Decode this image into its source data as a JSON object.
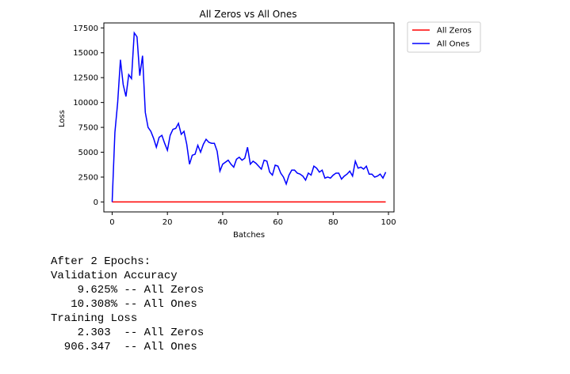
{
  "chart_data": {
    "type": "line",
    "title": "All Zeros vs All Ones",
    "xlabel": "Batches",
    "ylabel": "Loss",
    "xlim": [
      -3,
      102
    ],
    "ylim": [
      -1000,
      18000
    ],
    "xticks": [
      0,
      20,
      40,
      60,
      80,
      100
    ],
    "yticks": [
      0,
      2500,
      5000,
      7500,
      10000,
      12500,
      15000,
      17500
    ],
    "grid": false,
    "legend_placement": "outside-top-right",
    "series": [
      {
        "name": "All Zeros",
        "color": "#ff0000",
        "x": [
          0,
          99
        ],
        "y": [
          0,
          0
        ]
      },
      {
        "name": "All Ones",
        "color": "#0000ff",
        "x": [
          0,
          1,
          2,
          3,
          4,
          5,
          6,
          7,
          8,
          9,
          10,
          11,
          12,
          13,
          14,
          15,
          16,
          17,
          18,
          19,
          20,
          21,
          22,
          23,
          24,
          25,
          26,
          27,
          28,
          29,
          30,
          31,
          32,
          33,
          34,
          35,
          36,
          37,
          38,
          39,
          40,
          41,
          42,
          43,
          44,
          45,
          46,
          47,
          48,
          49,
          50,
          51,
          52,
          53,
          54,
          55,
          56,
          57,
          58,
          59,
          60,
          61,
          62,
          63,
          64,
          65,
          66,
          67,
          68,
          69,
          70,
          71,
          72,
          73,
          74,
          75,
          76,
          77,
          78,
          79,
          80,
          81,
          82,
          83,
          84,
          85,
          86,
          87,
          88,
          89,
          90,
          91,
          92,
          93,
          94,
          95,
          96,
          97,
          98,
          99
        ],
        "y": [
          0,
          7000,
          10000,
          14300,
          11800,
          10600,
          12800,
          12400,
          17000,
          16600,
          12700,
          14700,
          9000,
          7500,
          7100,
          6400,
          5500,
          6500,
          6700,
          5900,
          5200,
          6700,
          7300,
          7400,
          7900,
          6800,
          7100,
          5800,
          3800,
          4700,
          4800,
          5700,
          5000,
          5800,
          6300,
          6000,
          5900,
          5900,
          5100,
          3100,
          3800,
          4000,
          4200,
          3800,
          3500,
          4300,
          4500,
          4200,
          4400,
          5500,
          3800,
          4100,
          3900,
          3600,
          3300,
          4200,
          4100,
          3000,
          2700,
          3700,
          3600,
          2900,
          2500,
          1800,
          2700,
          3200,
          3200,
          2900,
          2800,
          2600,
          2200,
          2900,
          2700,
          3600,
          3400,
          3000,
          3200,
          2400,
          2500,
          2400,
          2700,
          2900,
          2900,
          2300,
          2600,
          2800,
          3100,
          2600,
          4100,
          3400,
          3500,
          3300,
          3600,
          2800,
          2800,
          2500,
          2600,
          2800,
          2400,
          3000
        ]
      }
    ]
  },
  "output_lines": [
    "After 2 Epochs:",
    "Validation Accuracy",
    "    9.625% -- All Zeros",
    "   10.308% -- All Ones",
    "Training Loss",
    "    2.303  -- All Zeros",
    "  906.347  -- All Ones"
  ]
}
